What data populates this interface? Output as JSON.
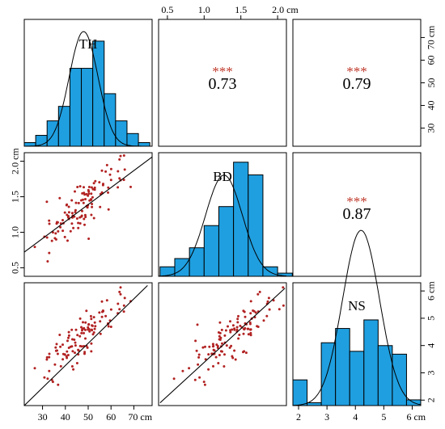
{
  "chart_data": {
    "type": "pairs",
    "variables": [
      "TH",
      "BD",
      "NS"
    ],
    "units": "cm",
    "axes": {
      "TH": {
        "range": [
          22,
          78
        ],
        "ticks": [
          30,
          40,
          50,
          60,
          70
        ],
        "tick_labels": [
          "30",
          "40",
          "50",
          "60",
          "70 cm"
        ],
        "y_tick_labels": [
          "30",
          "40",
          "50",
          "60",
          "70 cm"
        ]
      },
      "BD": {
        "range": [
          0.38,
          2.12
        ],
        "ticks": [
          0.5,
          1.0,
          1.5,
          2.0
        ],
        "tick_labels": [
          "0.5",
          "1.0",
          "1.5",
          "2.0 cm"
        ],
        "y_tick_labels": [
          "0.5",
          "1.0",
          "1.5",
          "2.0 cm"
        ]
      },
      "NS": {
        "range": [
          1.8,
          6.3
        ],
        "ticks": [
          2,
          3,
          4,
          5,
          6
        ],
        "tick_labels": [
          "2",
          "3",
          "4",
          "5",
          "6 cm"
        ],
        "y_tick_labels": [
          "2",
          "3",
          "4",
          "5",
          "6 cm"
        ]
      }
    },
    "correlations": [
      {
        "row": "TH",
        "col": "BD",
        "r": "0.73",
        "significance": "***"
      },
      {
        "row": "TH",
        "col": "NS",
        "r": "0.79",
        "significance": "***"
      },
      {
        "row": "BD",
        "col": "NS",
        "r": "0.87",
        "significance": "***"
      }
    ],
    "histograms": {
      "TH": {
        "edges": [
          22,
          27,
          32,
          37,
          42,
          47,
          52,
          57,
          62,
          67,
          72,
          77
        ],
        "density": [
          0.002,
          0.006,
          0.014,
          0.022,
          0.043,
          0.043,
          0.058,
          0.029,
          0.014,
          0.007,
          0.002
        ],
        "normal_mean": 48,
        "normal_sd": 6.3
      },
      "BD": {
        "edges": [
          0.4,
          0.6,
          0.8,
          1.0,
          1.2,
          1.4,
          1.6,
          1.8,
          2.0,
          2.2
        ],
        "density": [
          0.15,
          0.28,
          0.45,
          0.8,
          1.1,
          1.8,
          1.6,
          0.15,
          0.05
        ],
        "normal_mean": 1.27,
        "normal_sd": 0.25
      },
      "NS": {
        "edges": [
          1.8,
          2.3,
          2.8,
          3.3,
          3.8,
          4.3,
          4.8,
          5.3,
          5.8,
          6.3
        ],
        "density": [
          0.09,
          0.01,
          0.22,
          0.27,
          0.19,
          0.3,
          0.21,
          0.18,
          0.02
        ],
        "normal_mean": 4.2,
        "normal_sd": 0.65
      },
      "density_max": {
        "TH": 0.07,
        "BD": 1.95,
        "NS": 0.43
      }
    },
    "colors": {
      "bars": "#1f9fe0",
      "bar_edge": "#000000",
      "points": "#b22222",
      "stars": "#c0392b",
      "line": "#000000"
    },
    "scatter_n": 120,
    "fit_lines": {
      "TH_vs_BD": {
        "x": [
          22,
          78
        ],
        "y": [
          0.72,
          2.06
        ]
      },
      "TH_vs_NS": {
        "x": [
          22,
          76
        ],
        "y": [
          1.8,
          6.2
        ]
      },
      "BD_vs_NS": {
        "x": [
          0.4,
          2.1
        ],
        "y": [
          1.9,
          6.1
        ]
      }
    }
  }
}
